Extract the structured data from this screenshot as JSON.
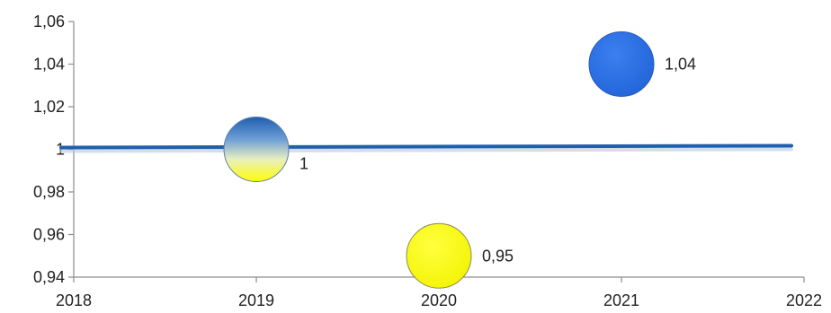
{
  "chart_data": {
    "type": "scatter",
    "subtype": "bubble",
    "title": "",
    "xlabel": "",
    "ylabel": "",
    "xlim": [
      2018,
      2022
    ],
    "ylim": [
      0.94,
      1.06
    ],
    "x_ticks": [
      "2018",
      "2019",
      "2020",
      "2021",
      "2022"
    ],
    "y_ticks": [
      "0,94",
      "0,96",
      "0,98",
      "1",
      "1,02",
      "1,04",
      "1,06"
    ],
    "grid": false,
    "legend": "none",
    "points": [
      {
        "x": 2019,
        "y": 1.0,
        "label": "1",
        "fill": "gradient-blue-yellow"
      },
      {
        "x": 2020,
        "y": 0.95,
        "label": "0,95",
        "fill": "#ffff00"
      },
      {
        "x": 2021,
        "y": 1.04,
        "label": "1,04",
        "fill": "#2a6fe0"
      }
    ],
    "reference_line": {
      "y": 1.0,
      "color": "#1f5fb0"
    },
    "colors": {
      "axis": "#8c8c8c",
      "line": "#1f5fb0",
      "yellow": "#ffff00",
      "blue": "#2a6fe0"
    }
  }
}
